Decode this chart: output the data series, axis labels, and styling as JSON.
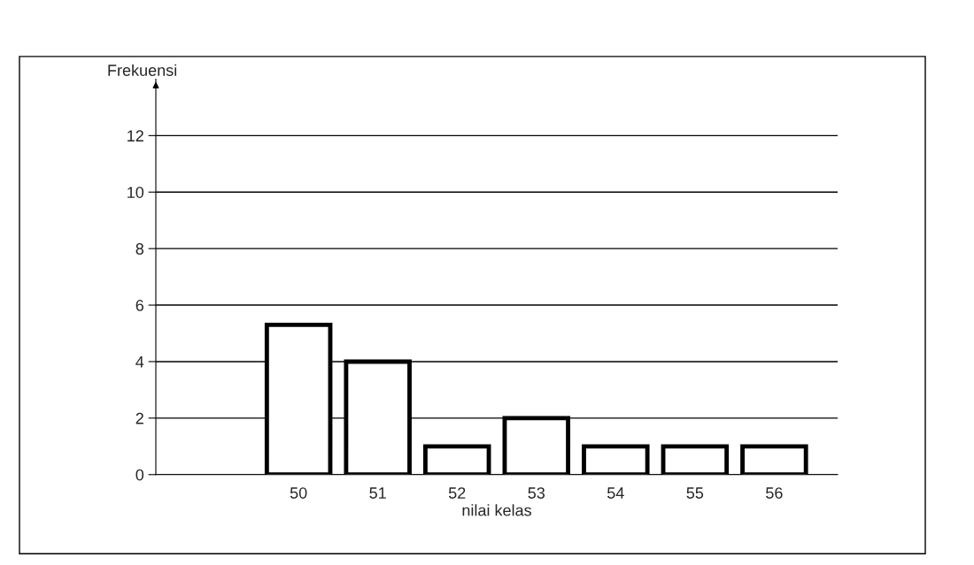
{
  "chart_data": {
    "type": "bar",
    "xlabel": "nilai kelas",
    "ylabel": "Frekuensi",
    "categories": [
      "50",
      "51",
      "52",
      "53",
      "54",
      "55",
      "56"
    ],
    "values": [
      5.3,
      4,
      1,
      2,
      1,
      1,
      1
    ],
    "color": "#ffffff",
    "ylim": [
      0,
      14
    ],
    "yticks": [
      0,
      2,
      4,
      6,
      8,
      10,
      12
    ],
    "grid": "y"
  }
}
